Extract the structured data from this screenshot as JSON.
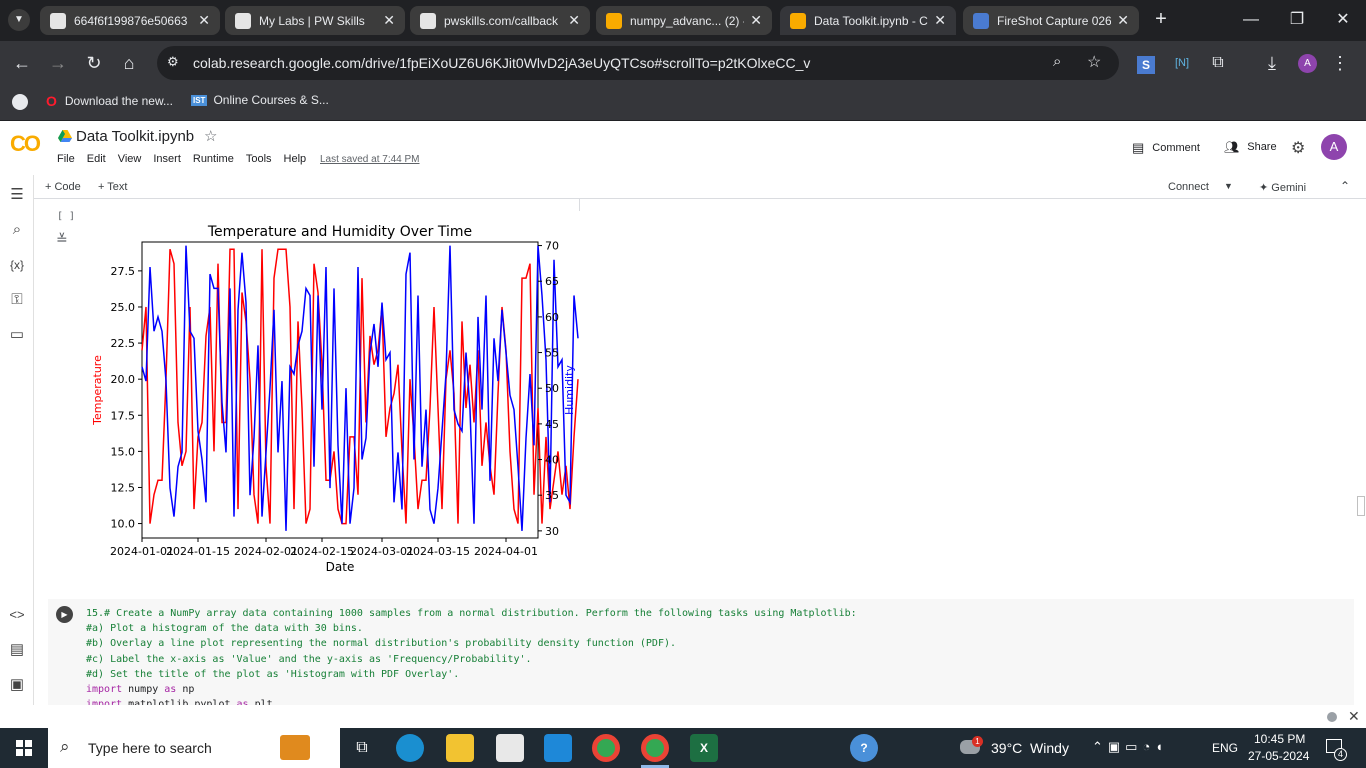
{
  "browser": {
    "tabs": [
      {
        "title": "664f6f199876e50663",
        "icon_color": "#e5e5e5",
        "active": false
      },
      {
        "title": "My Labs | PW Skills",
        "icon_color": "#e5e5e5",
        "active": false
      },
      {
        "title": "pwskills.com/callback",
        "icon_color": "#e5e5e5",
        "active": false
      },
      {
        "title": "numpy_advanc... (2) -",
        "icon_color": "#f9ab00",
        "active": false
      },
      {
        "title": "Data Toolkit.ipynb - C",
        "icon_color": "#f9ab00",
        "active": true
      },
      {
        "title": "FireShot Capture 026",
        "icon_color": "#4a7bd0",
        "active": false
      }
    ],
    "url": "colab.research.google.com/drive/1fpEiXoUZ6U6KJit0WlvD2jA3eUyQTCso#scrollTo=p2tKOlxeCC_v",
    "bookmarks": [
      "Download the new...",
      "Online Courses & S..."
    ],
    "profile_initial": "A"
  },
  "colab": {
    "logo": "CO",
    "notebook_title": "Data Toolkit.ipynb",
    "menu": [
      "File",
      "Edit",
      "View",
      "Insert",
      "Runtime",
      "Tools",
      "Help"
    ],
    "last_saved": "Last saved at 7:44 PM",
    "comment_label": "Comment",
    "share_label": "Share",
    "avatar_initial": "A",
    "add_code": "+ Code",
    "add_text": "+ Text",
    "connect_label": "Connect",
    "gemini_label": "✦ Gemini",
    "cell_bracket": "[ ]"
  },
  "chart_data": {
    "type": "line",
    "title": "Temperature and Humidity Over Time",
    "xlabel": "Date",
    "ylabel_left": "Temperature",
    "ylabel_right": "Humidity",
    "x_ticks": [
      "2024-01-01",
      "2024-01-15",
      "2024-02-01",
      "2024-02-15",
      "2024-03-01",
      "2024-03-15",
      "2024-04-01"
    ],
    "y_left_ticks": [
      "10.0",
      "12.5",
      "15.0",
      "17.5",
      "20.0",
      "22.5",
      "25.0",
      "27.5"
    ],
    "y_right_ticks": [
      "30",
      "35",
      "40",
      "45",
      "50",
      "55",
      "60",
      "65",
      "70"
    ],
    "ylim_left": [
      9.0,
      29.5
    ],
    "ylim_right": [
      29.0,
      70.5
    ],
    "x_start": "2024-01-01",
    "x_end": "2024-04-09",
    "colors": {
      "temperature": "#ff0000",
      "humidity": "#0000ff"
    },
    "series": [
      {
        "name": "Temperature",
        "axis": "left",
        "values": [
          22,
          25,
          10,
          12,
          13,
          13,
          20,
          29,
          28,
          17,
          14,
          15,
          25,
          11,
          16,
          17,
          23,
          25,
          15,
          28,
          17,
          17,
          29,
          29,
          11,
          26,
          24,
          20,
          12,
          10,
          29,
          14,
          10,
          27,
          29,
          29,
          29,
          25,
          11,
          24,
          18,
          10,
          11,
          28,
          26,
          21,
          13,
          13,
          15,
          11,
          10,
          10,
          16,
          16,
          12,
          27,
          17,
          23,
          21,
          22,
          25,
          16,
          18,
          19,
          21,
          15,
          10,
          20,
          16,
          11,
          13,
          13,
          18,
          25,
          18,
          11,
          20,
          22,
          19,
          10,
          24,
          18,
          21,
          17,
          22,
          14,
          17,
          14,
          12,
          19,
          25,
          22,
          15,
          11,
          10,
          27,
          27,
          28,
          12,
          18,
          10,
          16,
          11,
          13,
          15,
          12,
          14,
          11,
          16,
          20
        ]
      }
    ]
  },
  "code": {
    "lines": [
      {
        "text": "15.# Create a NumPy array data containing 1000 samples from a normal distribution. Perform the following tasks using Matplotlib:",
        "kind": "comment"
      },
      {
        "text": "#a) Plot a histogram of the data with 30 bins.",
        "kind": "comment"
      },
      {
        "text": "#b) Overlay a line plot representing the normal distribution's probability density function (PDF).",
        "kind": "comment"
      },
      {
        "text": "#c) Label the x-axis as 'Value' and the y-axis as 'Frequency/Probability'.",
        "kind": "comment"
      },
      {
        "text": "#d) Set the title of the plot as 'Histogram with PDF Overlay'.",
        "kind": "comment"
      },
      {
        "text": "import numpy as np",
        "kind": "code"
      },
      {
        "text": "import matplotlib.pyplot as plt",
        "kind": "code"
      }
    ]
  },
  "taskbar": {
    "search_placeholder": "Type here to search",
    "weather": "39°C  Windy",
    "language": "ENG",
    "time": "10:45 PM",
    "date": "27-05-2024",
    "notification_count": "4",
    "weather_badge": "1"
  }
}
